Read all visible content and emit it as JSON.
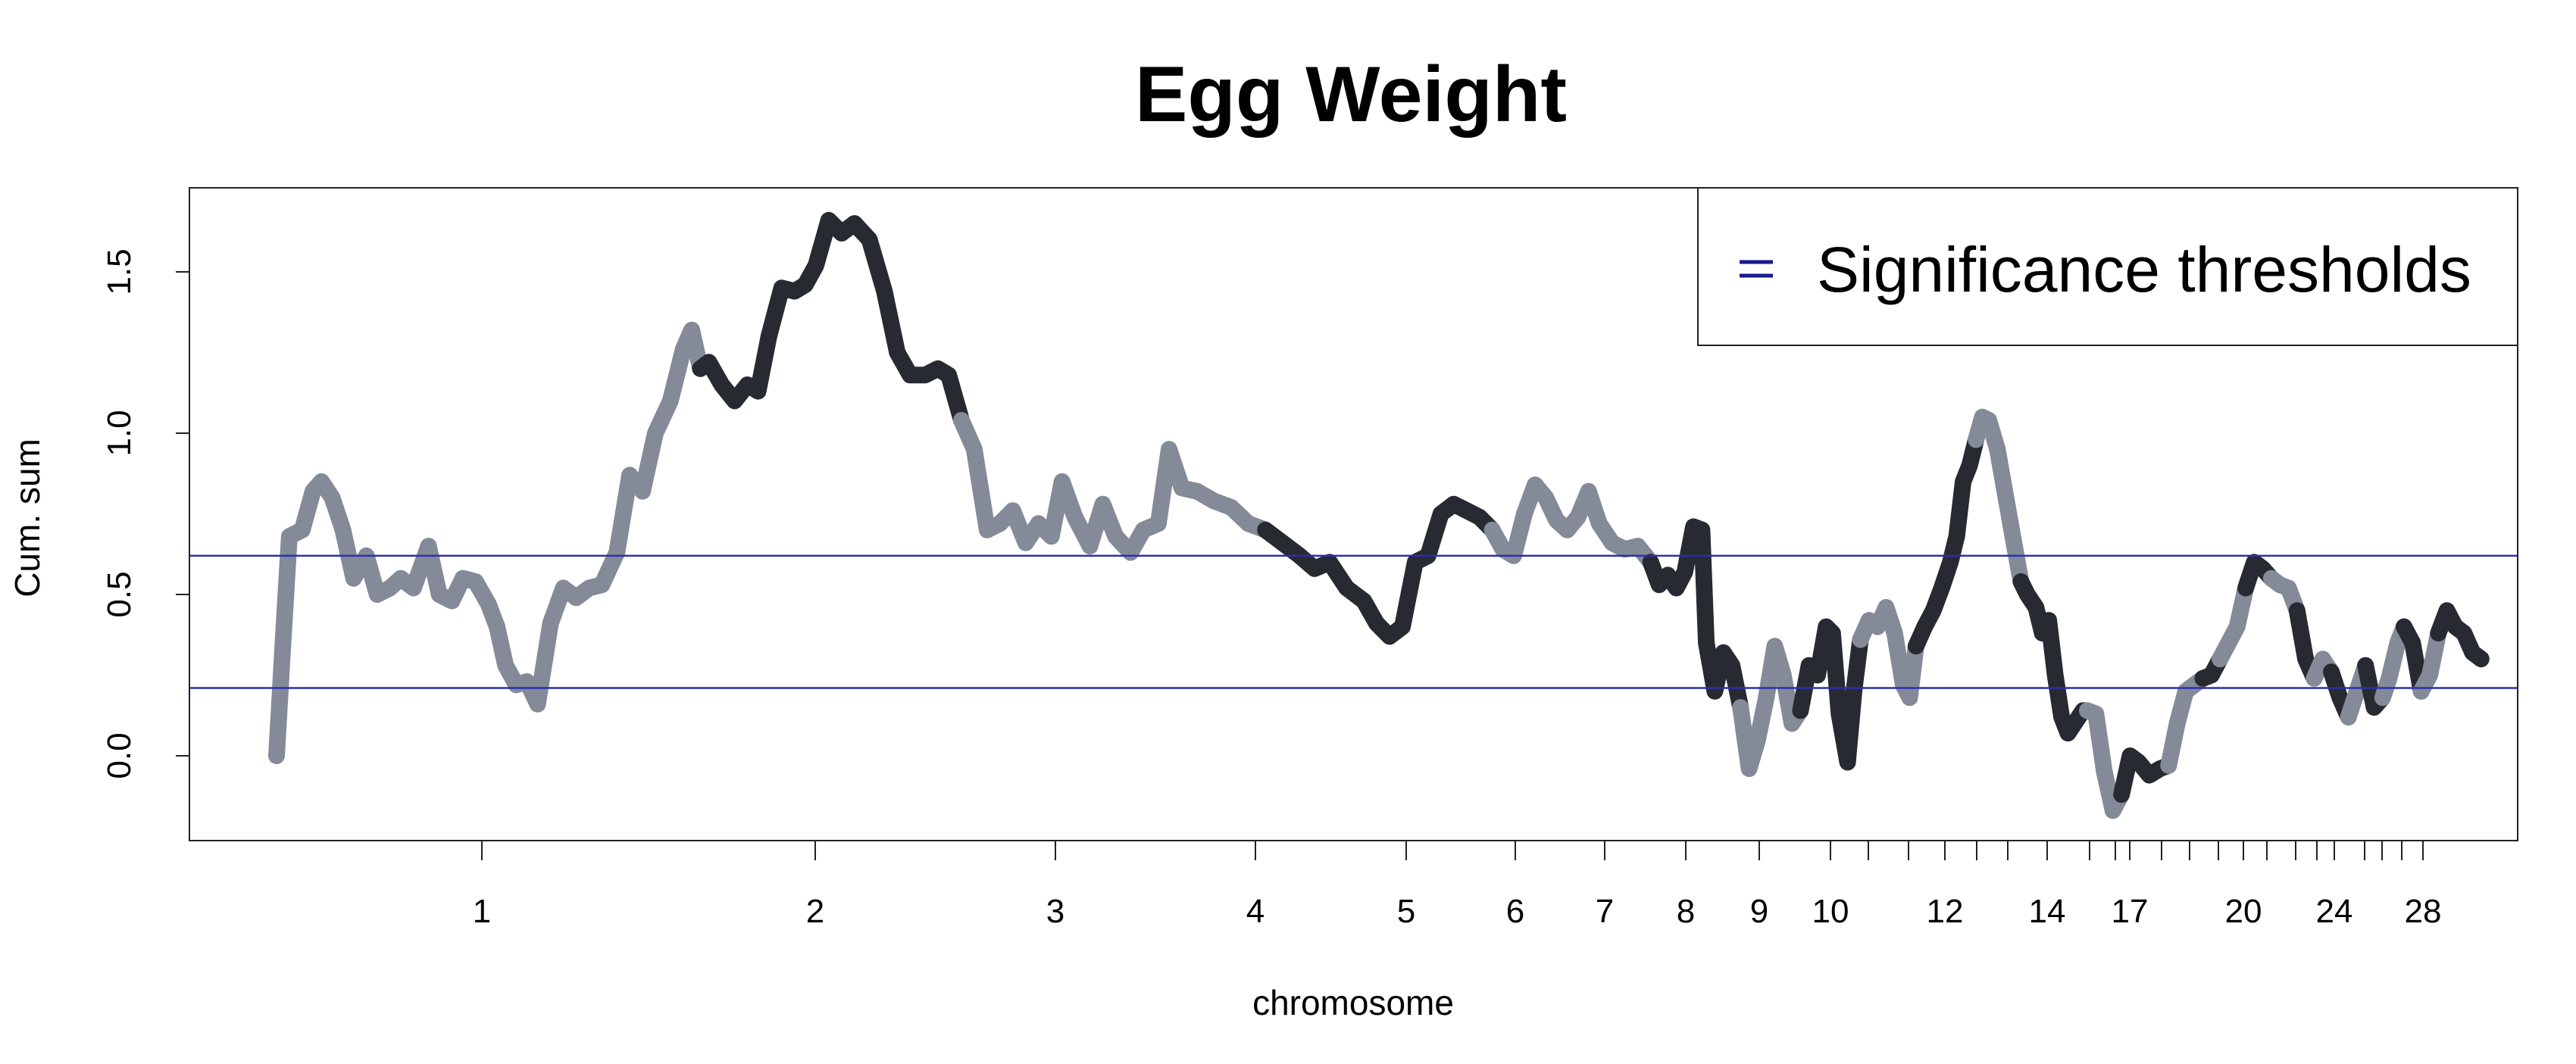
{
  "chart_data": {
    "type": "line",
    "title": "Egg Weight",
    "xlabel": "chromosome",
    "ylabel": "Cum. sum",
    "ylim": [
      -0.26,
      1.76
    ],
    "y_ticks": [
      0.0,
      0.5,
      1.0,
      1.5
    ],
    "y_tick_labels": [
      "0.0",
      "0.5",
      "1.0",
      "1.5"
    ],
    "x_tick_labels": [
      "1",
      "2",
      "3",
      "4",
      "5",
      "6",
      "7",
      "8",
      "9",
      "10",
      "12",
      "14",
      "17",
      "20",
      "24",
      "28"
    ],
    "thresholds": [
      0.62,
      0.21
    ],
    "legend": {
      "label": "Significance thresholds",
      "placement": "top-right"
    },
    "colors": {
      "odd_chromosome": "#848a98",
      "even_chromosome": "#272a30",
      "threshold": "#2b2fb0",
      "legend_mark": "#1a1a8c"
    },
    "chromosome_colors": [
      "#848a98",
      "#272a30",
      "#848a98",
      "#272a30",
      "#848a98",
      "#272a30",
      "#848a98",
      "#272a30",
      "#848a98",
      "#272a30",
      "#848a98",
      "#272a30",
      "#848a98",
      "#272a30",
      "#848a98",
      "#272a30",
      "#848a98",
      "#272a30",
      "#848a98",
      "#272a30",
      "#848a98",
      "#272a30",
      "#848a98",
      "#272a30",
      "#848a98",
      "#272a30",
      "#848a98",
      "#272a30"
    ],
    "segments": [
      [
        [
          0.0,
          0.0
        ],
        [
          0.03,
          0.35
        ],
        [
          0.06,
          0.68
        ],
        [
          0.12,
          0.7
        ],
        [
          0.17,
          0.82
        ],
        [
          0.21,
          0.85
        ],
        [
          0.26,
          0.8
        ],
        [
          0.31,
          0.7
        ],
        [
          0.36,
          0.55
        ],
        [
          0.42,
          0.62
        ],
        [
          0.47,
          0.5
        ],
        [
          0.53,
          0.52
        ],
        [
          0.58,
          0.55
        ],
        [
          0.64,
          0.52
        ],
        [
          0.71,
          0.65
        ],
        [
          0.76,
          0.5
        ],
        [
          0.82,
          0.48
        ],
        [
          0.87,
          0.55
        ],
        [
          0.93,
          0.54
        ],
        [
          0.99,
          0.47
        ],
        [
          1.03,
          0.4
        ],
        [
          1.07,
          0.28
        ],
        [
          1.12,
          0.22
        ],
        [
          1.17,
          0.23
        ],
        [
          1.22,
          0.16
        ],
        [
          1.28,
          0.41
        ],
        [
          1.34,
          0.52
        ],
        [
          1.4,
          0.49
        ],
        [
          1.46,
          0.52
        ],
        [
          1.52,
          0.53
        ],
        [
          1.59,
          0.63
        ],
        [
          1.65,
          0.87
        ],
        [
          1.71,
          0.82
        ],
        [
          1.77,
          1.0
        ],
        [
          1.84,
          1.1
        ],
        [
          1.9,
          1.26
        ],
        [
          1.94,
          1.32
        ],
        [
          1.98,
          1.2
        ]
      ],
      [
        [
          1.98,
          1.2
        ],
        [
          2.02,
          1.22
        ],
        [
          2.08,
          1.15
        ],
        [
          2.14,
          1.1
        ],
        [
          2.2,
          1.15
        ],
        [
          2.25,
          1.13
        ],
        [
          2.3,
          1.3
        ],
        [
          2.36,
          1.45
        ],
        [
          2.42,
          1.44
        ],
        [
          2.47,
          1.46
        ],
        [
          2.52,
          1.52
        ],
        [
          2.58,
          1.66
        ],
        [
          2.64,
          1.62
        ],
        [
          2.7,
          1.65
        ],
        [
          2.77,
          1.6
        ],
        [
          2.84,
          1.44
        ],
        [
          2.9,
          1.25
        ],
        [
          2.96,
          1.18
        ],
        [
          3.03,
          1.18
        ],
        [
          3.09,
          1.2
        ],
        [
          3.14,
          1.18
        ],
        [
          3.2,
          1.04
        ]
      ],
      [
        [
          3.2,
          1.04
        ],
        [
          3.26,
          0.95
        ],
        [
          3.32,
          0.7
        ],
        [
          3.38,
          0.72
        ],
        [
          3.44,
          0.76
        ],
        [
          3.5,
          0.66
        ],
        [
          3.56,
          0.72
        ],
        [
          3.62,
          0.68
        ],
        [
          3.67,
          0.85
        ],
        [
          3.73,
          0.74
        ],
        [
          3.8,
          0.65
        ],
        [
          3.86,
          0.78
        ],
        [
          3.92,
          0.68
        ],
        [
          3.99,
          0.63
        ],
        [
          4.05,
          0.7
        ],
        [
          4.12,
          0.72
        ],
        [
          4.17,
          0.95
        ],
        [
          4.23,
          0.83
        ],
        [
          4.3,
          0.82
        ],
        [
          4.38,
          0.79
        ],
        [
          4.46,
          0.77
        ],
        [
          4.54,
          0.72
        ],
        [
          4.62,
          0.7
        ]
      ],
      [
        [
          4.62,
          0.7
        ],
        [
          4.7,
          0.66
        ],
        [
          4.78,
          0.62
        ],
        [
          4.85,
          0.58
        ],
        [
          4.92,
          0.6
        ],
        [
          5.0,
          0.52
        ],
        [
          5.08,
          0.48
        ],
        [
          5.14,
          0.41
        ],
        [
          5.2,
          0.37
        ],
        [
          5.26,
          0.4
        ],
        [
          5.32,
          0.6
        ],
        [
          5.38,
          0.62
        ],
        [
          5.44,
          0.75
        ],
        [
          5.5,
          0.78
        ],
        [
          5.56,
          0.76
        ],
        [
          5.62,
          0.74
        ],
        [
          5.68,
          0.7
        ]
      ],
      [
        [
          5.68,
          0.7
        ],
        [
          5.73,
          0.64
        ],
        [
          5.78,
          0.62
        ],
        [
          5.83,
          0.75
        ],
        [
          5.88,
          0.84
        ],
        [
          5.93,
          0.8
        ],
        [
          5.98,
          0.73
        ],
        [
          6.03,
          0.7
        ],
        [
          6.08,
          0.74
        ],
        [
          6.13,
          0.82
        ],
        [
          6.18,
          0.72
        ],
        [
          6.24,
          0.66
        ],
        [
          6.3,
          0.64
        ],
        [
          6.36,
          0.65
        ],
        [
          6.42,
          0.6
        ]
      ],
      [
        [
          6.42,
          0.6
        ],
        [
          6.46,
          0.53
        ],
        [
          6.5,
          0.56
        ],
        [
          6.54,
          0.52
        ],
        [
          6.58,
          0.57
        ],
        [
          6.62,
          0.71
        ],
        [
          6.66,
          0.7
        ],
        [
          6.68,
          0.35
        ],
        [
          6.72,
          0.2
        ],
        [
          6.76,
          0.32
        ],
        [
          6.8,
          0.28
        ],
        [
          6.84,
          0.15
        ]
      ],
      [
        [
          6.84,
          0.15
        ],
        [
          6.88,
          -0.04
        ],
        [
          6.92,
          0.05
        ],
        [
          6.96,
          0.18
        ],
        [
          7.0,
          0.34
        ],
        [
          7.04,
          0.25
        ],
        [
          7.08,
          0.1
        ],
        [
          7.12,
          0.14
        ]
      ],
      [
        [
          7.12,
          0.14
        ],
        [
          7.16,
          0.28
        ],
        [
          7.2,
          0.25
        ],
        [
          7.24,
          0.4
        ],
        [
          7.27,
          0.38
        ],
        [
          7.3,
          0.13
        ],
        [
          7.34,
          -0.02
        ],
        [
          7.37,
          0.2
        ],
        [
          7.4,
          0.36
        ]
      ],
      [
        [
          7.4,
          0.36
        ],
        [
          7.44,
          0.42
        ],
        [
          7.48,
          0.4
        ],
        [
          7.52,
          0.46
        ],
        [
          7.56,
          0.38
        ],
        [
          7.6,
          0.22
        ],
        [
          7.63,
          0.18
        ],
        [
          7.66,
          0.34
        ]
      ],
      [
        [
          7.66,
          0.34
        ],
        [
          7.7,
          0.4
        ],
        [
          7.74,
          0.45
        ],
        [
          7.78,
          0.52
        ],
        [
          7.82,
          0.6
        ],
        [
          7.85,
          0.68
        ],
        [
          7.88,
          0.85
        ],
        [
          7.91,
          0.9
        ],
        [
          7.94,
          0.98
        ]
      ],
      [
        [
          7.94,
          0.98
        ],
        [
          7.97,
          1.05
        ],
        [
          8.0,
          1.04
        ],
        [
          8.04,
          0.95
        ],
        [
          8.08,
          0.8
        ],
        [
          8.12,
          0.65
        ],
        [
          8.15,
          0.54
        ]
      ],
      [
        [
          8.15,
          0.54
        ],
        [
          8.18,
          0.5
        ],
        [
          8.22,
          0.46
        ],
        [
          8.25,
          0.38
        ],
        [
          8.28,
          0.42
        ],
        [
          8.31,
          0.25
        ],
        [
          8.34,
          0.12
        ],
        [
          8.37,
          0.07
        ],
        [
          8.4,
          0.1
        ],
        [
          8.44,
          0.14
        ],
        [
          8.46,
          0.14
        ]
      ],
      [
        [
          8.46,
          0.14
        ],
        [
          8.5,
          0.13
        ],
        [
          8.54,
          -0.05
        ],
        [
          8.58,
          -0.17
        ],
        [
          8.62,
          -0.12
        ]
      ],
      [
        [
          8.62,
          -0.12
        ],
        [
          8.66,
          0.0
        ],
        [
          8.7,
          -0.02
        ],
        [
          8.75,
          -0.06
        ],
        [
          8.8,
          -0.04
        ],
        [
          8.84,
          -0.03
        ]
      ],
      [
        [
          8.84,
          -0.03
        ],
        [
          8.88,
          0.1
        ],
        [
          8.92,
          0.2
        ],
        [
          8.96,
          0.22
        ],
        [
          9.0,
          0.24
        ]
      ],
      [
        [
          9.0,
          0.24
        ],
        [
          9.04,
          0.25
        ],
        [
          9.08,
          0.3
        ]
      ],
      [
        [
          9.08,
          0.3
        ],
        [
          9.12,
          0.35
        ],
        [
          9.16,
          0.4
        ],
        [
          9.2,
          0.52
        ]
      ],
      [
        [
          9.2,
          0.52
        ],
        [
          9.24,
          0.6
        ],
        [
          9.28,
          0.58
        ],
        [
          9.32,
          0.55
        ]
      ],
      [
        [
          9.32,
          0.55
        ],
        [
          9.36,
          0.53
        ],
        [
          9.4,
          0.52
        ],
        [
          9.44,
          0.45
        ]
      ],
      [
        [
          9.44,
          0.45
        ],
        [
          9.48,
          0.3
        ],
        [
          9.52,
          0.24
        ]
      ],
      [
        [
          9.52,
          0.24
        ],
        [
          9.56,
          0.3
        ],
        [
          9.6,
          0.26
        ]
      ],
      [
        [
          9.6,
          0.26
        ],
        [
          9.64,
          0.18
        ],
        [
          9.68,
          0.12
        ]
      ],
      [
        [
          9.68,
          0.12
        ],
        [
          9.72,
          0.2
        ],
        [
          9.76,
          0.28
        ]
      ],
      [
        [
          9.76,
          0.28
        ],
        [
          9.8,
          0.15
        ],
        [
          9.84,
          0.18
        ]
      ],
      [
        [
          9.84,
          0.18
        ],
        [
          9.87,
          0.24
        ],
        [
          9.91,
          0.35
        ],
        [
          9.94,
          0.4
        ]
      ],
      [
        [
          9.94,
          0.4
        ],
        [
          9.98,
          0.35
        ],
        [
          10.02,
          0.2
        ]
      ],
      [
        [
          10.02,
          0.2
        ],
        [
          10.06,
          0.25
        ],
        [
          10.1,
          0.38
        ]
      ],
      [
        [
          10.1,
          0.38
        ],
        [
          10.14,
          0.45
        ],
        [
          10.18,
          0.4
        ],
        [
          10.22,
          0.38
        ],
        [
          10.26,
          0.32
        ],
        [
          10.3,
          0.3
        ]
      ]
    ]
  }
}
